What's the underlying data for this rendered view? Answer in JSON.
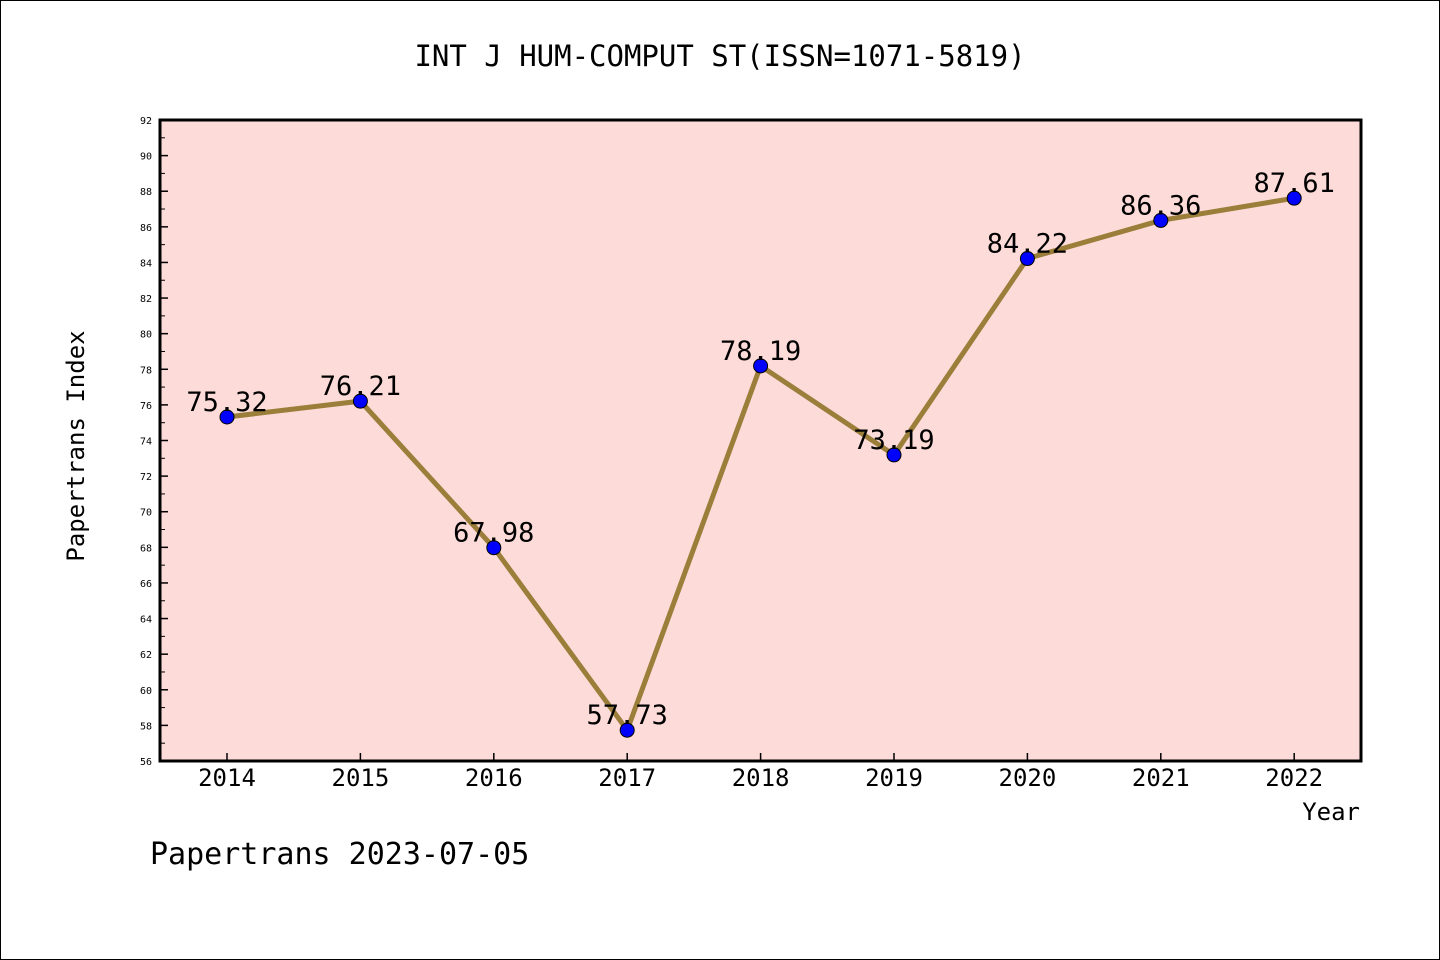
{
  "chart_data": {
    "type": "line",
    "title": "INT J HUM-COMPUT ST(ISSN=1071-5819)",
    "xlabel": "Year",
    "ylabel": "Papertrans Index",
    "footer": "Papertrans 2023-07-05",
    "categories": [
      "2014",
      "2015",
      "2016",
      "2017",
      "2018",
      "2019",
      "2020",
      "2021",
      "2022"
    ],
    "series": [
      {
        "values": [
          75.32,
          76.21,
          67.98,
          57.73,
          78.19,
          73.19,
          84.22,
          86.36,
          87.61
        ],
        "labels": [
          "75.32",
          "76.21",
          "67.98",
          "57.73",
          "78.19",
          "73.19",
          "84.22",
          "86.36",
          "87.61"
        ]
      }
    ],
    "ylim": [
      56,
      92
    ],
    "yticks": [
      "56",
      "58",
      "60",
      "62",
      "64",
      "66",
      "68",
      "70",
      "72",
      "74",
      "76",
      "78",
      "80",
      "82",
      "84",
      "86",
      "88",
      "90",
      "92"
    ],
    "grid": false,
    "colors": {
      "plot_background": "#fddbd8",
      "line": "#9b7e3a",
      "marker": "#0000ff",
      "axes": "#000000"
    }
  }
}
